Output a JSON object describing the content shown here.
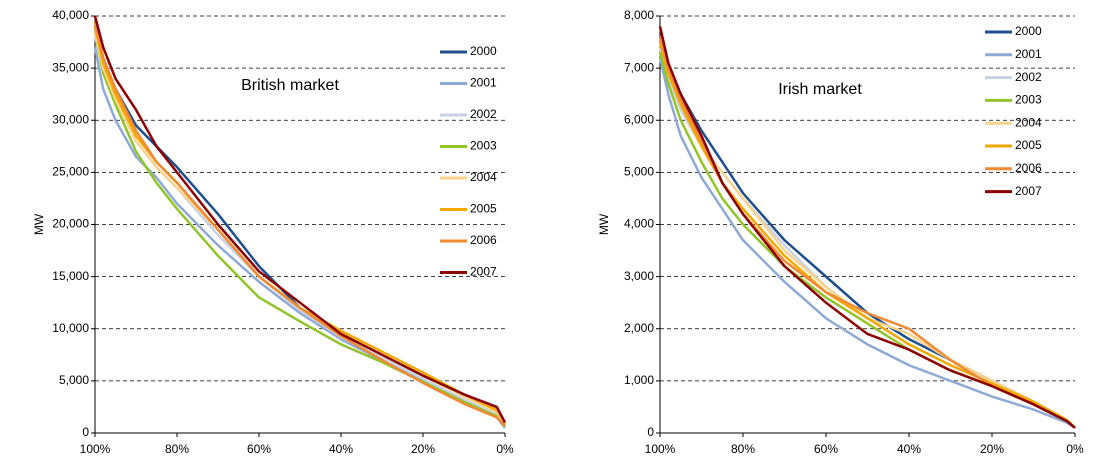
{
  "chart_data": [
    {
      "type": "line",
      "annotation": "British market",
      "ylabel": "MW",
      "grid": true,
      "x": [
        100,
        98,
        95,
        90,
        85,
        80,
        70,
        60,
        50,
        40,
        30,
        20,
        10,
        2,
        0
      ],
      "xlim": [
        100,
        0
      ],
      "xticks": [
        {
          "value": 100,
          "label": "100%"
        },
        {
          "value": 80,
          "label": "80%"
        },
        {
          "value": 60,
          "label": "60%"
        },
        {
          "value": 40,
          "label": "40%"
        },
        {
          "value": 20,
          "label": "20%"
        },
        {
          "value": 0,
          "label": "0%"
        }
      ],
      "ylim": [
        0,
        40000
      ],
      "yticks": [
        0,
        {
          "value": 5000,
          "label": "5,000"
        },
        {
          "value": 10000,
          "label": "10,000"
        },
        {
          "value": 15000,
          "label": "15,000"
        },
        {
          "value": 20000,
          "label": "20,000"
        },
        {
          "value": 25000,
          "label": "25,000"
        },
        {
          "value": 30000,
          "label": "30,000"
        },
        {
          "value": 35000,
          "label": "35,000"
        },
        {
          "value": 40000,
          "label": "40,000"
        }
      ],
      "series": [
        {
          "name": "2000",
          "color": "#1f4e8c",
          "values": [
            39000,
            35500,
            33000,
            29500,
            27500,
            25500,
            21000,
            16000,
            12000,
            9000,
            7000,
            5000,
            3000,
            1700,
            800
          ]
        },
        {
          "name": "2001",
          "color": "#8fa9d6",
          "values": [
            37000,
            33000,
            30000,
            26500,
            24500,
            22000,
            18000,
            14500,
            11500,
            9000,
            7000,
            5000,
            3000,
            1500,
            500
          ]
        },
        {
          "name": "2002",
          "color": "#c8d2e6",
          "values": [
            38000,
            35000,
            32000,
            28000,
            25500,
            23500,
            19000,
            15000,
            11800,
            9200,
            7200,
            5200,
            3200,
            1800,
            700
          ]
        },
        {
          "name": "2003",
          "color": "#92c42a",
          "values": [
            38500,
            34500,
            31500,
            27000,
            24000,
            21500,
            17000,
            13000,
            10700,
            8500,
            6800,
            4900,
            3000,
            1600,
            600
          ]
        },
        {
          "name": "2004",
          "color": "#f8d48e",
          "values": [
            38500,
            35000,
            32000,
            28000,
            25500,
            23500,
            19500,
            15000,
            12000,
            9500,
            7500,
            5500,
            3500,
            2000,
            900
          ]
        },
        {
          "name": "2005",
          "color": "#f5a800",
          "values": [
            39000,
            35500,
            32500,
            28500,
            26000,
            24000,
            19500,
            15000,
            12000,
            9800,
            7800,
            5800,
            3700,
            2200,
            1000
          ]
        },
        {
          "name": "2006",
          "color": "#f08a35",
          "values": [
            39500,
            36000,
            33000,
            29000,
            26000,
            24000,
            19500,
            15000,
            12000,
            9300,
            7000,
            4800,
            2800,
            1500,
            700
          ]
        },
        {
          "name": "2007",
          "color": "#8b0000",
          "values": [
            40000,
            37000,
            34000,
            31000,
            27500,
            25000,
            20000,
            15500,
            12500,
            9500,
            7500,
            5500,
            3700,
            2500,
            1000
          ]
        }
      ]
    },
    {
      "type": "line",
      "annotation": "Irish market",
      "ylabel": "MW",
      "grid": true,
      "x": [
        100,
        98,
        95,
        90,
        85,
        80,
        70,
        60,
        50,
        40,
        30,
        20,
        10,
        2,
        0
      ],
      "xlim": [
        100,
        0
      ],
      "xticks": [
        {
          "value": 100,
          "label": "100%"
        },
        {
          "value": 80,
          "label": "80%"
        },
        {
          "value": 60,
          "label": "60%"
        },
        {
          "value": 40,
          "label": "40%"
        },
        {
          "value": 20,
          "label": "20%"
        },
        {
          "value": 0,
          "label": "0%"
        }
      ],
      "ylim": [
        0,
        8000
      ],
      "yticks": [
        0,
        {
          "value": 1000,
          "label": "1,000"
        },
        {
          "value": 2000,
          "label": "2,000"
        },
        {
          "value": 3000,
          "label": "3,000"
        },
        {
          "value": 4000,
          "label": "4,000"
        },
        {
          "value": 5000,
          "label": "5,000"
        },
        {
          "value": 6000,
          "label": "6,000"
        },
        {
          "value": 7000,
          "label": "7,000"
        },
        {
          "value": 8000,
          "label": "8,000"
        }
      ],
      "series": [
        {
          "name": "2000",
          "color": "#1f4e8c",
          "values": [
            7600,
            7000,
            6500,
            5800,
            5200,
            4600,
            3700,
            3000,
            2300,
            1800,
            1400,
            1000,
            600,
            250,
            100
          ]
        },
        {
          "name": "2001",
          "color": "#8fa9d6",
          "values": [
            7200,
            6500,
            5700,
            4900,
            4300,
            3700,
            2900,
            2200,
            1700,
            1300,
            1000,
            700,
            450,
            200,
            100
          ]
        },
        {
          "name": "2002",
          "color": "#c8d2e6",
          "values": [
            7400,
            6800,
            6200,
            5500,
            5000,
            4500,
            3600,
            2800,
            2200,
            1700,
            1300,
            950,
            600,
            250,
            100
          ]
        },
        {
          "name": "2003",
          "color": "#92c42a",
          "values": [
            7300,
            6700,
            6000,
            5200,
            4500,
            4000,
            3200,
            2600,
            2100,
            1600,
            1200,
            900,
            550,
            230,
            100
          ]
        },
        {
          "name": "2004",
          "color": "#f8d48e",
          "values": [
            7500,
            6900,
            6300,
            5500,
            5000,
            4500,
            3500,
            2800,
            2200,
            1900,
            1400,
            1000,
            600,
            250,
            100
          ]
        },
        {
          "name": "2005",
          "color": "#f5a800",
          "values": [
            7500,
            6900,
            6300,
            5500,
            4800,
            4300,
            3400,
            2700,
            2200,
            1700,
            1300,
            950,
            600,
            250,
            100
          ]
        },
        {
          "name": "2006",
          "color": "#f08a35",
          "values": [
            7600,
            7000,
            6400,
            5600,
            4800,
            4200,
            3300,
            2700,
            2300,
            2000,
            1400,
            900,
            550,
            230,
            100
          ]
        },
        {
          "name": "2007",
          "color": "#8b0000",
          "values": [
            7800,
            7100,
            6500,
            5700,
            4800,
            4200,
            3200,
            2500,
            1900,
            1600,
            1200,
            900,
            550,
            230,
            100
          ]
        }
      ]
    }
  ]
}
